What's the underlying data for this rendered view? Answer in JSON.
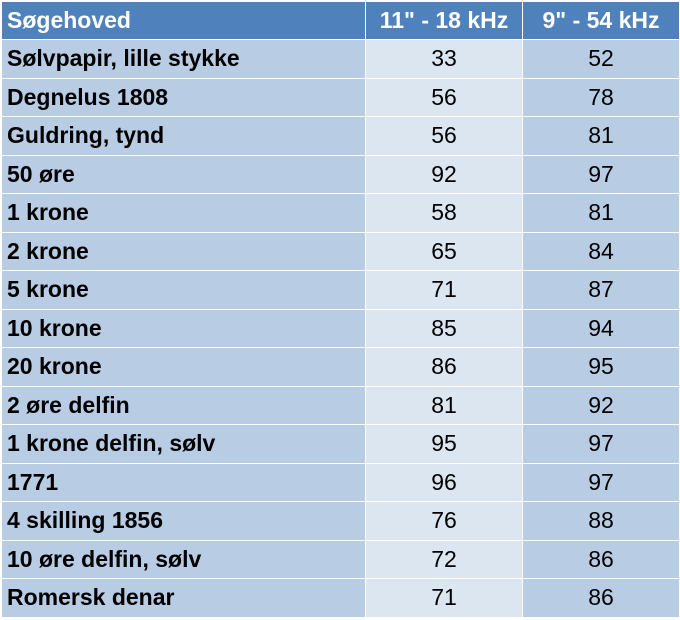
{
  "chart_data": {
    "type": "table",
    "columns": [
      "Søgehoved",
      "11\" - 18 kHz",
      "9\" - 54 kHz"
    ],
    "rows": [
      [
        "Sølvpapir, lille stykke",
        33,
        52
      ],
      [
        "Degnelus 1808",
        56,
        78
      ],
      [
        "Guldring, tynd",
        56,
        81
      ],
      [
        "50 øre",
        92,
        97
      ],
      [
        "1 krone",
        58,
        81
      ],
      [
        "2 krone",
        65,
        84
      ],
      [
        "5 krone",
        71,
        87
      ],
      [
        "10 krone",
        85,
        94
      ],
      [
        "20 krone",
        86,
        95
      ],
      [
        "2 øre delfin",
        81,
        92
      ],
      [
        "1 krone delfin, sølv",
        95,
        97
      ],
      [
        "1771",
        96,
        97
      ],
      [
        "4 skilling 1856",
        76,
        88
      ],
      [
        "10 øre delfin, sølv",
        72,
        86
      ],
      [
        "Romersk denar",
        71,
        86
      ]
    ],
    "colors": {
      "header": "#4f81bd",
      "row_dark": "#b8cce4",
      "row_light": "#dce6f1"
    }
  }
}
